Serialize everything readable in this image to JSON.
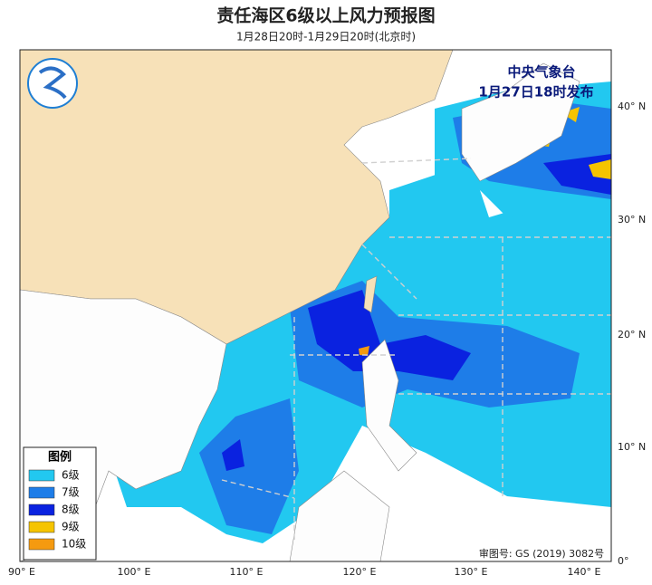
{
  "header": {
    "title": "责任海区6级以上风力预报图",
    "subtitle": "1月28日20时-1月29日20时(北京时)"
  },
  "publisher": [
    "中央气象台",
    "1月27日18时发布"
  ],
  "legend": {
    "title": "图例",
    "items": [
      {
        "label": "6级",
        "color": "#22c8f0"
      },
      {
        "label": "7级",
        "color": "#1e7de8"
      },
      {
        "label": "8级",
        "color": "#0a22e0"
      },
      {
        "label": "9级",
        "color": "#f5c400"
      },
      {
        "label": "10级",
        "color": "#f59a10"
      }
    ]
  },
  "axes": {
    "lon": [
      "90° E",
      "100° E",
      "110° E",
      "120° E",
      "130° E",
      "140° E"
    ],
    "lat": [
      "40° N",
      "30° N",
      "20° N",
      "10° N",
      "0°"
    ]
  },
  "approval": "审图号: GS (2019) 3082号"
}
